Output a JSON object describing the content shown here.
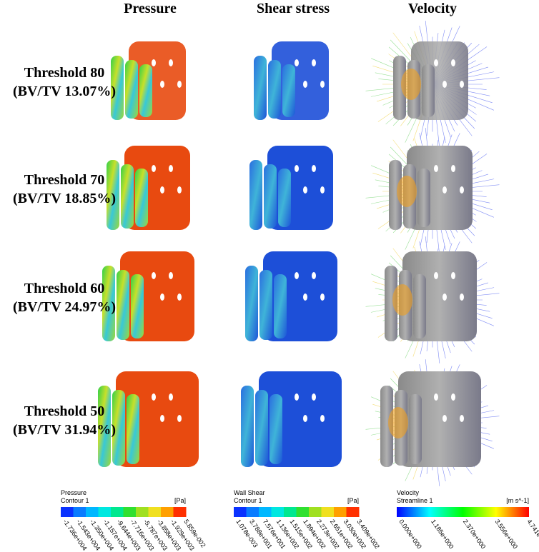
{
  "columns": [
    "Pressure",
    "Shear stress",
    "Velocity"
  ],
  "rows": [
    {
      "label": "Threshold 80",
      "bvtv": "(BV/TV 13.07%)"
    },
    {
      "label": "Threshold 70",
      "bvtv": "(BV/TV 18.85%)"
    },
    {
      "label": "Threshold 60",
      "bvtv": "(BV/TV 24.97%)"
    },
    {
      "label": "Threshold 50",
      "bvtv": "(BV/TV 31.94%)"
    }
  ],
  "legends": [
    {
      "title": "Pressure",
      "subtitle": "Contour 1",
      "unit": "[Pa]",
      "ticks": [
        "-1.736e+004",
        "-1.543e+004",
        "-1.350e+004",
        "-1.157e+004",
        "-9.644e+003",
        "-7.716e+003",
        "-5.787e+003",
        "-3.858e+003",
        "-1.929e+003",
        "5.859e-002"
      ]
    },
    {
      "title": "Wall Shear",
      "subtitle": "Contour 1",
      "unit": "[Pa]",
      "ticks": [
        "1.078e-003",
        "3.788e+001",
        "7.576e+001",
        "1.136e+002",
        "1.515e+002",
        "1.894e+002",
        "2.273e+002",
        "2.651e+002",
        "3.030e+002",
        "3.409e+002"
      ]
    },
    {
      "title": "Velocity",
      "subtitle": "Streamline 1",
      "unit": "[m s^-1]",
      "ticks": [
        "0.000e+000",
        "1.185e+000",
        "2.370e+000",
        "3.556e+000",
        "4.741e+000"
      ]
    }
  ]
}
